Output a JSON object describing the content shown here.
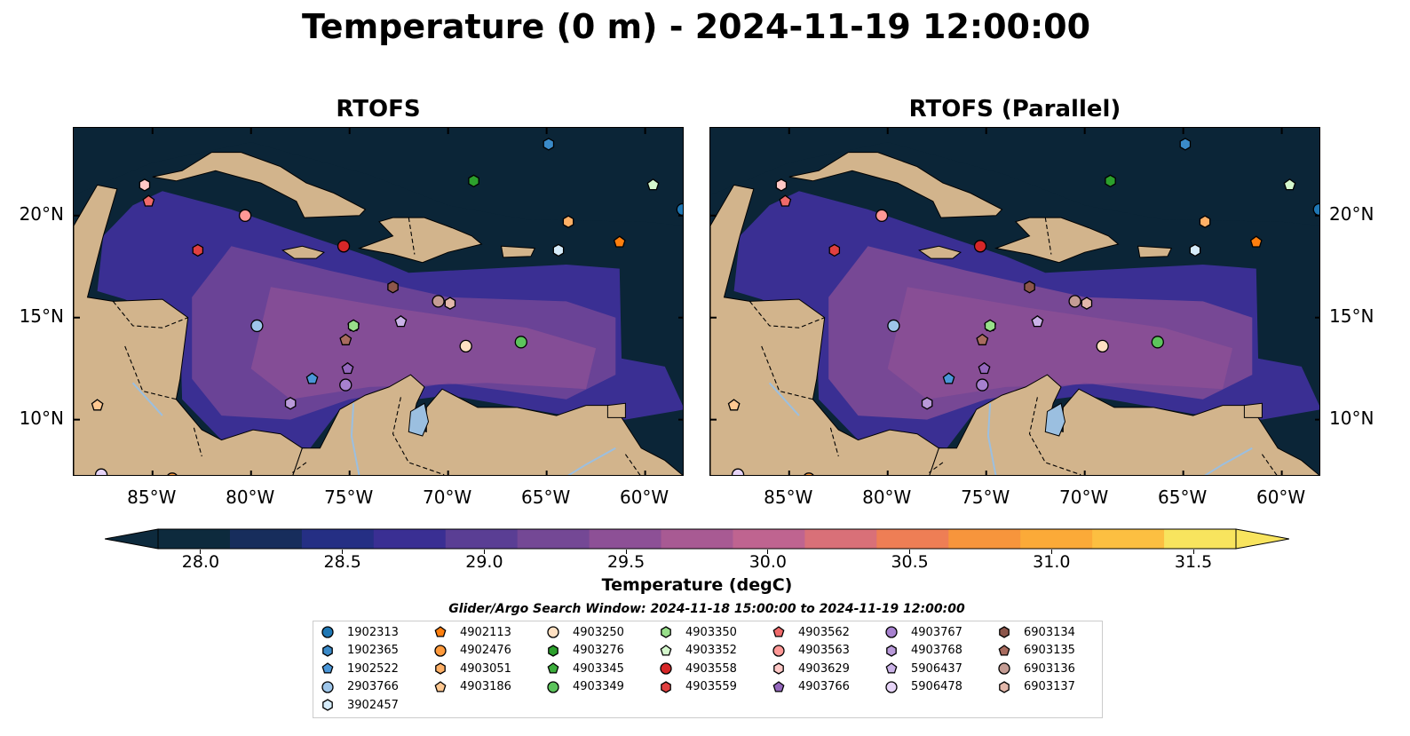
{
  "title": "Temperature (0 m) - 2024-11-19 12:00:00",
  "panels": [
    {
      "title": "RTOFS"
    },
    {
      "title": "RTOFS (Parallel)"
    }
  ],
  "map": {
    "lon_range": [
      -89,
      -58
    ],
    "lat_range": [
      7.2,
      24.3
    ],
    "lon_ticks": [
      "85°W",
      "80°W",
      "75°W",
      "70°W",
      "65°W",
      "60°W"
    ],
    "lat_ticks": [
      "10°N",
      "15°N",
      "20°N"
    ],
    "land_color": "#d2b48c",
    "ocean_deep_color": "#0b2537",
    "lake_color": "#9bbfe0"
  },
  "colorbar": {
    "label": "Temperature (degC)",
    "ticks": [
      "28.0",
      "28.5",
      "29.0",
      "29.5",
      "30.0",
      "30.5",
      "31.0",
      "31.5"
    ],
    "min": 28.0,
    "max": 31.5,
    "extend": "both",
    "colors": [
      "#0d2a3d",
      "#172d5c",
      "#252f84",
      "#3a2f93",
      "#5a3e94",
      "#744895",
      "#8d5096",
      "#a85a93",
      "#bf6490",
      "#d97078",
      "#ee7e55",
      "#f7953c",
      "#fbaa38",
      "#fcbf41",
      "#f8e45e"
    ]
  },
  "search_window": "Glider/Argo Search Window: 2024-11-18 15:00:00 to 2024-11-19 12:00:00",
  "legend": [
    {
      "id": "1902313",
      "color": "#1f77b4",
      "shape": "circle"
    },
    {
      "id": "1902365",
      "color": "#3a8ac8",
      "shape": "hexagon"
    },
    {
      "id": "1902522",
      "color": "#4a96d8",
      "shape": "pentagon"
    },
    {
      "id": "2903766",
      "color": "#9ec6ea",
      "shape": "circle"
    },
    {
      "id": "3902457",
      "color": "#d6ecfa",
      "shape": "hexagon"
    },
    {
      "id": "4902113",
      "color": "#ff7f0e",
      "shape": "pentagon"
    },
    {
      "id": "4902476",
      "color": "#ff9a3c",
      "shape": "circle"
    },
    {
      "id": "4903051",
      "color": "#ffb066",
      "shape": "hexagon"
    },
    {
      "id": "4903186",
      "color": "#ffc891",
      "shape": "pentagon"
    },
    {
      "id": "4903250",
      "color": "#ffe0c2",
      "shape": "circle"
    },
    {
      "id": "4903276",
      "color": "#2ca02c",
      "shape": "hexagon"
    },
    {
      "id": "4903345",
      "color": "#3cae3c",
      "shape": "pentagon"
    },
    {
      "id": "4903349",
      "color": "#5cc45c",
      "shape": "circle"
    },
    {
      "id": "4903350",
      "color": "#98df8a",
      "shape": "hexagon"
    },
    {
      "id": "4903352",
      "color": "#d4f7cc",
      "shape": "pentagon"
    },
    {
      "id": "4903558",
      "color": "#d62728",
      "shape": "circle"
    },
    {
      "id": "4903559",
      "color": "#e04040",
      "shape": "hexagon"
    },
    {
      "id": "4903562",
      "color": "#f06a6a",
      "shape": "pentagon"
    },
    {
      "id": "4903563",
      "color": "#ff9896",
      "shape": "circle"
    },
    {
      "id": "4903629",
      "color": "#ffc8c6",
      "shape": "hexagon"
    },
    {
      "id": "4903766",
      "color": "#9467bd",
      "shape": "pentagon"
    },
    {
      "id": "4903767",
      "color": "#a781cf",
      "shape": "circle"
    },
    {
      "id": "4903768",
      "color": "#b99ad9",
      "shape": "hexagon"
    },
    {
      "id": "5906437",
      "color": "#cbb3e8",
      "shape": "pentagon"
    },
    {
      "id": "5906478",
      "color": "#e6d4f7",
      "shape": "circle"
    },
    {
      "id": "6903134",
      "color": "#8c564b",
      "shape": "hexagon"
    },
    {
      "id": "6903135",
      "color": "#a86b5e",
      "shape": "pentagon"
    },
    {
      "id": "6903136",
      "color": "#c49c94",
      "shape": "circle"
    },
    {
      "id": "6903137",
      "color": "#e3b8ab",
      "shape": "hexagon"
    }
  ],
  "markers": [
    {
      "id": "1902313",
      "lon": -58.1,
      "lat": 20.3
    },
    {
      "id": "1902365",
      "lon": -64.9,
      "lat": 23.5
    },
    {
      "id": "1902522",
      "lon": -76.9,
      "lat": 12.0
    },
    {
      "id": "2903766",
      "lon": -79.7,
      "lat": 14.6
    },
    {
      "id": "3902457",
      "lon": -64.4,
      "lat": 18.3
    },
    {
      "id": "4902113",
      "lon": -61.3,
      "lat": 18.7
    },
    {
      "id": "4902476",
      "lon": -84.0,
      "lat": 7.1
    },
    {
      "id": "4903051",
      "lon": -63.9,
      "lat": 19.7
    },
    {
      "id": "4903186",
      "lon": -87.8,
      "lat": 10.7
    },
    {
      "id": "4903250",
      "lon": -69.1,
      "lat": 13.6
    },
    {
      "id": "4903276",
      "lon": -68.7,
      "lat": 21.7
    },
    {
      "id": "4903345",
      "lon": -74.8,
      "lat": 14.6
    },
    {
      "id": "4903349",
      "lon": -66.3,
      "lat": 13.8
    },
    {
      "id": "4903350",
      "lon": -74.8,
      "lat": 14.6
    },
    {
      "id": "4903352",
      "lon": -59.6,
      "lat": 21.5
    },
    {
      "id": "4903558",
      "lon": -75.3,
      "lat": 18.5
    },
    {
      "id": "4903559",
      "lon": -82.7,
      "lat": 18.3
    },
    {
      "id": "4903562",
      "lon": -85.2,
      "lat": 20.7
    },
    {
      "id": "4903563",
      "lon": -80.3,
      "lat": 20.0
    },
    {
      "id": "4903629",
      "lon": -85.4,
      "lat": 21.5
    },
    {
      "id": "4903766",
      "lon": -75.1,
      "lat": 12.5
    },
    {
      "id": "4903767",
      "lon": -75.2,
      "lat": 11.7
    },
    {
      "id": "4903768",
      "lon": -78.0,
      "lat": 10.8
    },
    {
      "id": "5906437",
      "lon": -72.4,
      "lat": 14.8
    },
    {
      "id": "5906478",
      "lon": -87.6,
      "lat": 7.3
    },
    {
      "id": "6903134",
      "lon": -72.8,
      "lat": 16.5
    },
    {
      "id": "6903135",
      "lon": -75.2,
      "lat": 13.9
    },
    {
      "id": "6903136",
      "lon": -70.5,
      "lat": 15.8
    },
    {
      "id": "6903137",
      "lon": -69.9,
      "lat": 15.7
    }
  ]
}
